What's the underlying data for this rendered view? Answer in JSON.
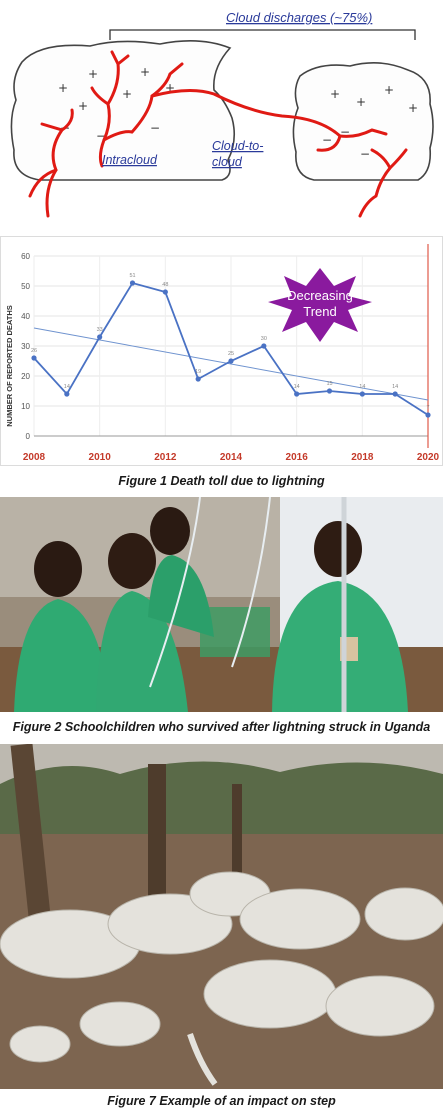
{
  "diagram": {
    "cloud_discharges_label": "Cloud discharges (~75%)",
    "intracloud_label": "Intracloud",
    "cloud_to_cloud_line1": "Cloud-to-",
    "cloud_to_cloud_line2": "cloud"
  },
  "chart_data": {
    "type": "line",
    "ylabel": "NUMBER OF REPORTED DEATHS",
    "xlabel": "",
    "x": [
      2008,
      2009,
      2010,
      2011,
      2012,
      2013,
      2014,
      2015,
      2016,
      2017,
      2018,
      2019,
      2020
    ],
    "values": [
      26,
      14,
      33,
      51,
      48,
      19,
      25,
      30,
      14,
      15,
      14,
      14,
      7
    ],
    "trend_start": 36,
    "trend_end": 12,
    "xlim": [
      2008,
      2020
    ],
    "ylim": [
      0,
      60
    ],
    "y_ticks": [
      0,
      10,
      20,
      30,
      40,
      50,
      60
    ],
    "x_ticks": [
      2008,
      2010,
      2012,
      2014,
      2016,
      2018,
      2020
    ],
    "annotation": "Decreasing Trend",
    "line_color": "#4a72c4",
    "trend_color": "#6f93cf",
    "star_color": "#8a1a9e",
    "grid": true
  },
  "captions": {
    "figure1": "Figure 1 Death toll due to lightning",
    "figure2": "Figure 2 Schoolchildren who survived  after lightning struck in Uganda",
    "figure7": "Figure 7 Example of an impact on step"
  }
}
